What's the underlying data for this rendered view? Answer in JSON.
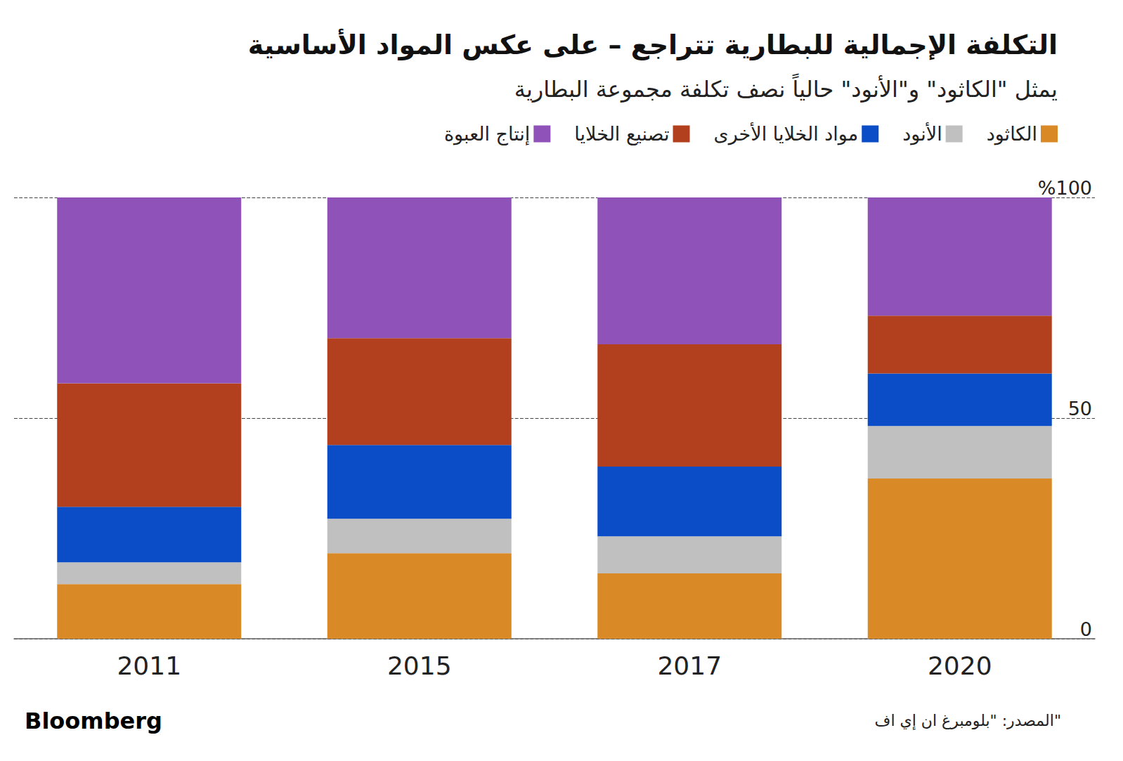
{
  "chart_data": {
    "type": "bar",
    "title": "التكلفة الإجمالية للبطارية تتراجع – على عكس المواد الأساسية",
    "subtitle": "يمثل \"الكاثود\" و\"الأنود\" حالياً نصف تكلفة مجموعة البطارية",
    "categories": [
      "2011",
      "2015",
      "2017",
      "2020"
    ],
    "series": [
      {
        "name": "الكاثود",
        "color": "#d98a27",
        "values": [
          12.4,
          19.4,
          14.8,
          36.3
        ]
      },
      {
        "name": "الأنود",
        "color": "#c0c0c0",
        "values": [
          4.9,
          7.8,
          8.4,
          11.9
        ]
      },
      {
        "name": "مواد الخلايا الأخرى",
        "color": "#0a4dc6",
        "values": [
          12.6,
          16.7,
          15.8,
          11.9
        ]
      },
      {
        "name": "تصنيع الخلايا",
        "color": "#b2401e",
        "values": [
          28.0,
          24.2,
          27.7,
          13.1
        ]
      },
      {
        "name": "إنتاج العبوة",
        "color": "#8e52b8",
        "values": [
          42.1,
          31.9,
          33.3,
          26.8
        ]
      }
    ],
    "ylim": [
      0,
      100
    ],
    "yticks": [
      0,
      50,
      {
        "value": 100,
        "label": "%100"
      }
    ],
    "stacked": true,
    "grid": true,
    "legend": "top-right",
    "source": "المصدر: \"بلومبرغ ان إي اف\"",
    "branding": "Bloomberg"
  }
}
